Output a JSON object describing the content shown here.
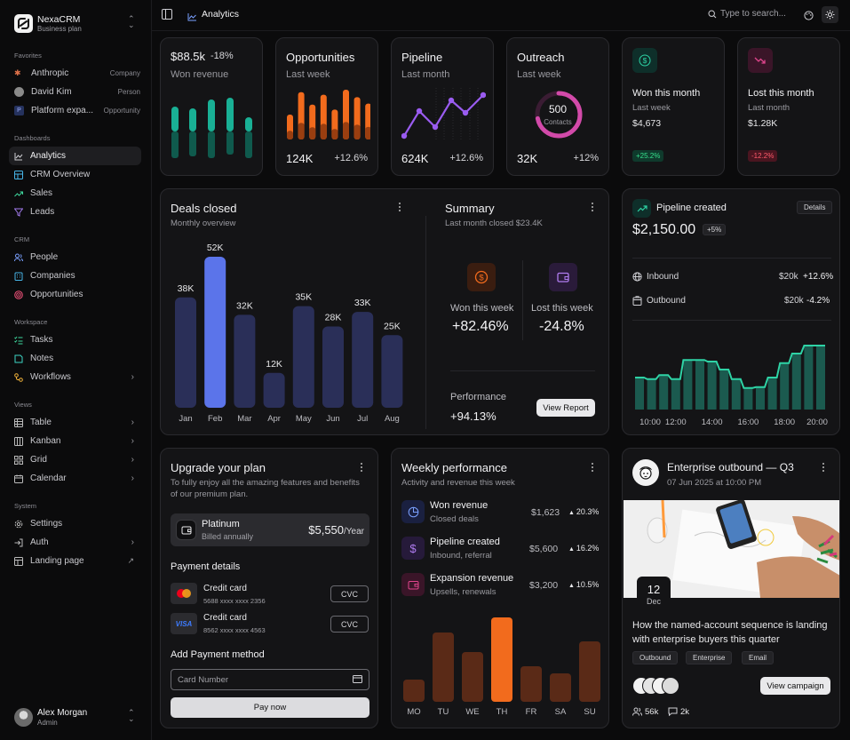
{
  "app": {
    "name": "NexaCRM",
    "plan": "Business plan"
  },
  "sidebar": {
    "favorites_label": "Favorites",
    "favorites": [
      {
        "label": "Anthropic",
        "tag": "Company"
      },
      {
        "label": "David Kim",
        "tag": "Person"
      },
      {
        "label": "Platform expa...",
        "tag": "Opportunity"
      }
    ],
    "dashboards_label": "Dashboards",
    "dashboards": [
      {
        "label": "Analytics"
      },
      {
        "label": "CRM Overview"
      },
      {
        "label": "Sales"
      },
      {
        "label": "Leads"
      }
    ],
    "crm_label": "CRM",
    "crm": [
      {
        "label": "People"
      },
      {
        "label": "Companies"
      },
      {
        "label": "Opportunities"
      }
    ],
    "workspace_label": "Workspace",
    "workspace": [
      {
        "label": "Tasks"
      },
      {
        "label": "Notes"
      },
      {
        "label": "Workflows"
      }
    ],
    "views_label": "Views",
    "views": [
      {
        "label": "Table"
      },
      {
        "label": "Kanban"
      },
      {
        "label": "Grid"
      },
      {
        "label": "Calendar"
      }
    ],
    "system_label": "System",
    "system": [
      {
        "label": "Settings"
      },
      {
        "label": "Auth"
      },
      {
        "label": "Landing page"
      }
    ],
    "user": {
      "name": "Alex Morgan",
      "role": "Admin"
    }
  },
  "topbar": {
    "breadcrumb": "Analytics",
    "search_placeholder": "Type to search..."
  },
  "kpis": {
    "revenue": {
      "value": "$88.5k",
      "change": "-18%",
      "label": "Won revenue"
    },
    "opportunities": {
      "title": "Opportunities",
      "sub": "Last week",
      "value": "124K",
      "change": "+12.6%"
    },
    "pipeline": {
      "title": "Pipeline",
      "sub": "Last month",
      "value": "624K",
      "change": "+12.6%"
    },
    "outreach": {
      "title": "Outreach",
      "sub": "Last week",
      "value": "32K",
      "change": "+12%",
      "ring_value": "500",
      "ring_label": "Contacts",
      "ring_fraction": 0.72
    },
    "won_month": {
      "title": "Won this month",
      "sub": "Last week",
      "value": "$4,673",
      "badge": "+25.2%"
    },
    "lost_month": {
      "title": "Lost this month",
      "sub": "Last month",
      "value": "$1.28K",
      "badge": "-12.2%"
    }
  },
  "deals": {
    "title": "Deals closed",
    "sub": "Monthly overview",
    "chart_data": {
      "type": "bar",
      "categories": [
        "Jan",
        "Feb",
        "Mar",
        "Apr",
        "May",
        "Jun",
        "Jul",
        "Aug"
      ],
      "values": [
        38,
        52,
        32,
        12,
        35,
        28,
        33,
        25
      ],
      "labels": [
        "38K",
        "52K",
        "32K",
        "12K",
        "35K",
        "28K",
        "33K",
        "25K"
      ],
      "highlight": "Feb",
      "colors": {
        "bar": "#2a2f58",
        "highlight": "#5b74ea"
      }
    }
  },
  "summary": {
    "title": "Summary",
    "sub": "Last month closed $23.4K",
    "won_label": "Won this week",
    "won_value": "+82.46%",
    "lost_label": "Lost this week",
    "lost_value": "-24.8%",
    "perf_label": "Performance",
    "perf_value": "+94.13%",
    "report_button": "View Report"
  },
  "pipeline_created": {
    "title": "Pipeline created",
    "details_button": "Details",
    "value": "$2,150.00",
    "badge": "+5%",
    "inbound_label": "Inbound",
    "inbound_value": "$20k",
    "inbound_change": "+12.6%",
    "outbound_label": "Outbound",
    "outbound_value": "$20k",
    "outbound_change": "-4.2%",
    "chart_data": {
      "type": "bar",
      "x_labels": [
        "10:00",
        "12:00",
        "14:00",
        "16:00",
        "18:00",
        "20:00"
      ],
      "values": [
        40,
        38,
        43,
        38,
        62,
        62,
        60,
        50,
        38,
        27,
        28,
        40,
        58,
        70,
        80,
        80
      ],
      "color": "#1b5a4f",
      "line_color": "#2ed3a5"
    }
  },
  "upgrade": {
    "title": "Upgrade your plan",
    "desc_line1": "To fully enjoy all the amazing features and benefits",
    "desc_line2": "of our premium plan.",
    "plan_name": "Platinum",
    "plan_billing": "Billed annually",
    "plan_price": "$5,550",
    "plan_period": "/Year",
    "payment_label": "Payment details",
    "cards": [
      {
        "brand": "mastercard",
        "label": "Credit card",
        "number": "5688 xxxx xxxx 2356",
        "cvc": "CVC"
      },
      {
        "brand": "VISA",
        "label": "Credit card",
        "number": "8562 xxxx xxxx 4563",
        "cvc": "CVC"
      }
    ],
    "add_label": "Add Payment method",
    "card_placeholder": "Card Number",
    "pay_button": "Pay now"
  },
  "weekly": {
    "title": "Weekly performance",
    "sub": "Activity and revenue this week",
    "rows": [
      {
        "title": "Won revenue",
        "sub": "Closed deals",
        "value": "$1,623",
        "change": "20.3%"
      },
      {
        "title": "Pipeline created",
        "sub": "Inbound, referral",
        "value": "$5,600",
        "change": "16.2%"
      },
      {
        "title": "Expansion revenue",
        "sub": "Upsells, renewals",
        "value": "$3,200",
        "change": "10.5%"
      }
    ],
    "chart_data": {
      "type": "bar",
      "categories": [
        "MO",
        "TU",
        "WE",
        "TH",
        "FR",
        "SA",
        "SU"
      ],
      "values": [
        25,
        78,
        56,
        95,
        40,
        32,
        68
      ],
      "highlight": "TH",
      "colors": {
        "bar": "#5a2a17",
        "highlight": "#f26b1d"
      }
    }
  },
  "enterprise": {
    "title": "Enterprise outbound — Q3",
    "date": "07 Jun 2025 at 10:00 PM",
    "day": "12",
    "month": "Dec",
    "headline_line1": "How the named-account sequence is landing",
    "headline_line2": "with enterprise buyers this quarter",
    "tags": [
      "Outbound",
      "Enterprise",
      "Email"
    ],
    "campaign_button": "View campaign",
    "members": "56k",
    "comments": "2k"
  }
}
